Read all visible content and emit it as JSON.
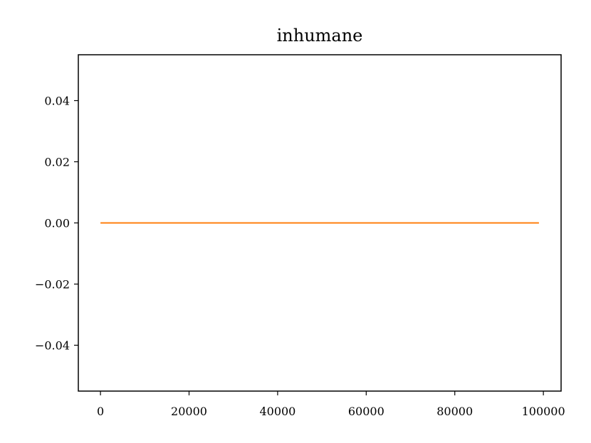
{
  "chart_data": {
    "type": "line",
    "title": "inhumane",
    "xlabel": "",
    "ylabel": "",
    "xlim": [
      -5000,
      104000
    ],
    "ylim": [
      -0.055,
      0.055
    ],
    "x_ticks": [
      0,
      20000,
      40000,
      60000,
      80000,
      100000
    ],
    "x_tick_labels": [
      "0",
      "20000",
      "40000",
      "60000",
      "80000",
      "100000"
    ],
    "y_ticks": [
      0.04,
      0.02,
      0.0,
      -0.02,
      -0.04
    ],
    "y_tick_labels": [
      "0.04",
      "0.02",
      "0.00",
      "−0.02",
      "−0.04"
    ],
    "grid": false,
    "series": [
      {
        "color": "#ff7f0e",
        "x": [
          0,
          99000
        ],
        "y": [
          0.0,
          0.0
        ]
      }
    ]
  }
}
